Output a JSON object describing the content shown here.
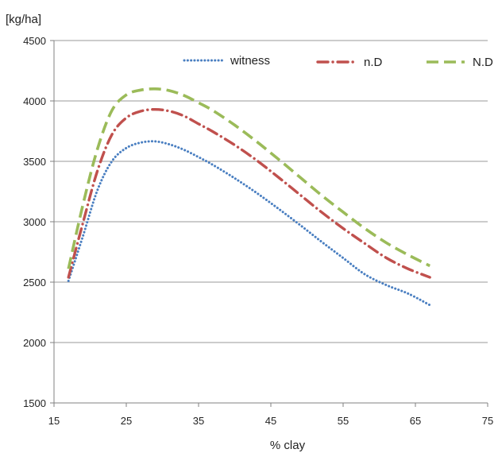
{
  "chart_data": {
    "type": "line",
    "title": "",
    "xlabel": "% clay",
    "ylabel": "[kg/ha]",
    "xlim": [
      15,
      75
    ],
    "ylim": [
      1500,
      4500
    ],
    "x_ticks": [
      15,
      25,
      35,
      45,
      55,
      65,
      75
    ],
    "y_ticks": [
      1500,
      2000,
      2500,
      3000,
      3500,
      4000,
      4500
    ],
    "grid": "horizontal",
    "legend_position": "top",
    "x": [
      17,
      19,
      21,
      23,
      25,
      27,
      29,
      31,
      33,
      35,
      37,
      40,
      43,
      46,
      49,
      52,
      55,
      58,
      61,
      64,
      67
    ],
    "series": [
      {
        "name": "witness",
        "color": "#4a7fc1",
        "dash": "dotted",
        "values": [
          2510,
          2880,
          3260,
          3500,
          3610,
          3655,
          3665,
          3640,
          3595,
          3535,
          3470,
          3360,
          3240,
          3110,
          2975,
          2835,
          2700,
          2565,
          2475,
          2405,
          2310
        ]
      },
      {
        "name": "n.D",
        "color": "#c0504d",
        "dash": "dash-dot",
        "values": [
          2540,
          2990,
          3420,
          3720,
          3860,
          3915,
          3930,
          3915,
          3875,
          3810,
          3745,
          3635,
          3510,
          3370,
          3225,
          3080,
          2945,
          2820,
          2700,
          2610,
          2540
        ]
      },
      {
        "name": "N.D",
        "color": "#9bbb59",
        "dash": "dashed",
        "values": [
          2610,
          3140,
          3600,
          3920,
          4050,
          4090,
          4100,
          4085,
          4045,
          3985,
          3920,
          3800,
          3665,
          3520,
          3370,
          3220,
          3080,
          2945,
          2825,
          2725,
          2635
        ]
      }
    ]
  }
}
